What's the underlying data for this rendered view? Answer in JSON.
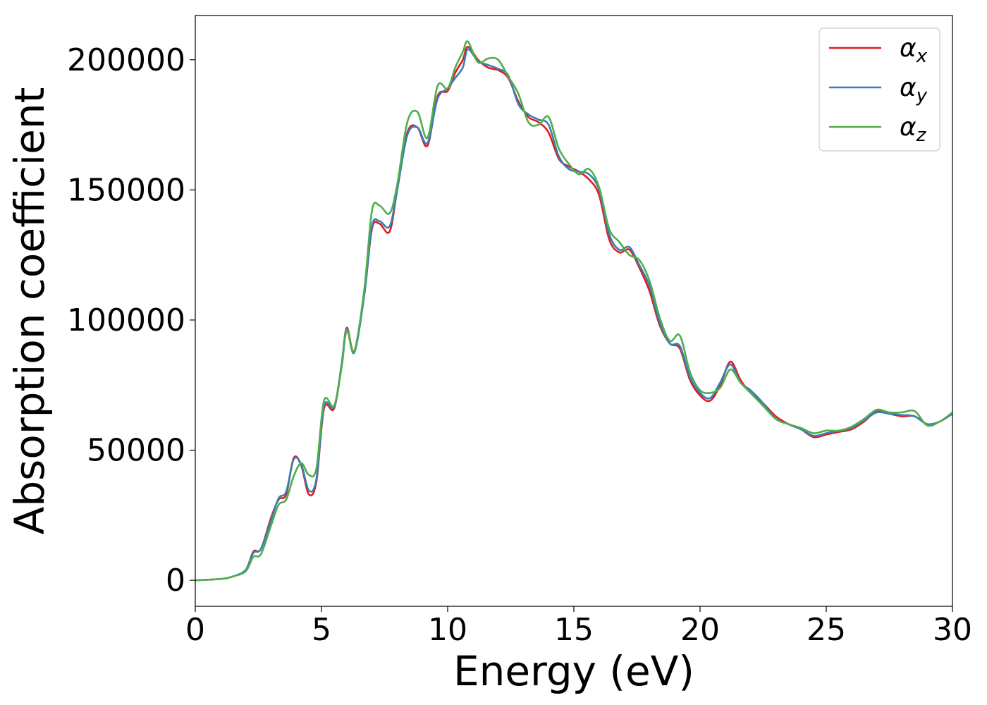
{
  "chart_data": {
    "type": "line",
    "xlabel": "Energy (eV)",
    "ylabel": "Absorption coefficient",
    "xlim": [
      0,
      30
    ],
    "ylim": [
      -10000,
      217000
    ],
    "xticks": [
      0,
      5,
      10,
      15,
      20,
      25,
      30
    ],
    "yticks": [
      0,
      50000,
      100000,
      150000,
      200000
    ],
    "grid": false,
    "legend_position": "top-right",
    "series": [
      {
        "name": "α",
        "subscript": "x",
        "color": "#e41a1c",
        "x": [
          0,
          1,
          1.5,
          2,
          2.3,
          2.6,
          3,
          3.3,
          3.6,
          3.9,
          4.2,
          4.5,
          4.8,
          5.1,
          5.5,
          5.8,
          6,
          6.3,
          6.7,
          7,
          7.3,
          7.7,
          8,
          8.4,
          8.8,
          9.2,
          9.6,
          10,
          10.3,
          10.6,
          10.8,
          11.2,
          11.6,
          12,
          12.4,
          12.8,
          13.2,
          13.6,
          14,
          14.4,
          14.8,
          15.2,
          15.6,
          16,
          16.4,
          16.8,
          17.2,
          17.6,
          18,
          18.4,
          18.8,
          19.2,
          19.6,
          20,
          20.4,
          20.8,
          21.2,
          21.6,
          22,
          22.5,
          23,
          23.5,
          24,
          24.5,
          25,
          25.5,
          26,
          26.5,
          27,
          27.5,
          28,
          28.5,
          29,
          29.5,
          30
        ],
        "y": [
          0,
          500,
          1500,
          4000,
          11000,
          12000,
          24000,
          31000,
          33000,
          47000,
          44000,
          33000,
          38000,
          66000,
          66000,
          83000,
          97000,
          88000,
          110000,
          135000,
          137000,
          134000,
          150000,
          172000,
          174000,
          167000,
          186000,
          188000,
          195000,
          200000,
          205000,
          200000,
          197000,
          196000,
          193000,
          184000,
          178000,
          176000,
          172000,
          162000,
          159000,
          157000,
          154000,
          148000,
          131000,
          126000,
          127000,
          120000,
          111000,
          98000,
          91000,
          89000,
          77000,
          71000,
          69000,
          75000,
          84000,
          77000,
          72000,
          68000,
          63000,
          60000,
          58000,
          55000,
          56000,
          57000,
          58000,
          61000,
          65000,
          64000,
          63000,
          63000,
          60000,
          61000,
          64000
        ]
      },
      {
        "name": "α",
        "subscript": "y",
        "color": "#377eb8",
        "x": [
          0,
          1,
          1.5,
          2,
          2.3,
          2.6,
          3,
          3.3,
          3.6,
          3.9,
          4.2,
          4.5,
          4.8,
          5.1,
          5.5,
          5.8,
          6,
          6.3,
          6.7,
          7,
          7.3,
          7.7,
          8,
          8.4,
          8.8,
          9.2,
          9.6,
          10,
          10.3,
          10.6,
          10.8,
          11.2,
          11.6,
          12,
          12.4,
          12.8,
          13.2,
          13.6,
          14,
          14.4,
          14.8,
          15.2,
          15.6,
          16,
          16.4,
          16.8,
          17.2,
          17.6,
          18,
          18.4,
          18.8,
          19.2,
          19.6,
          20,
          20.4,
          20.8,
          21.2,
          21.6,
          22,
          22.5,
          23,
          23.5,
          24,
          24.5,
          25,
          25.5,
          26,
          26.5,
          27,
          27.5,
          28,
          28.5,
          29,
          29.5,
          30
        ],
        "y": [
          0,
          500,
          1500,
          4000,
          10500,
          12000,
          23000,
          31500,
          34000,
          46500,
          44500,
          34500,
          39000,
          67000,
          66500,
          83000,
          96500,
          87500,
          110000,
          136000,
          138000,
          136000,
          150000,
          171000,
          174000,
          168000,
          185000,
          189000,
          193000,
          197000,
          204000,
          199500,
          198000,
          196500,
          194000,
          183000,
          179000,
          177000,
          175000,
          163000,
          158000,
          157000,
          156000,
          150000,
          133000,
          127000,
          128000,
          121000,
          113000,
          99000,
          91000,
          90000,
          78000,
          72000,
          70000,
          76000,
          83000,
          76000,
          73000,
          68000,
          62000,
          60000,
          58000,
          55500,
          56500,
          57500,
          58500,
          61500,
          64500,
          64000,
          63500,
          63000,
          60000,
          61000,
          64000
        ]
      },
      {
        "name": "α",
        "subscript": "z",
        "color": "#4daf4a",
        "x": [
          0,
          1,
          1.5,
          2,
          2.3,
          2.6,
          3,
          3.3,
          3.6,
          3.9,
          4.2,
          4.5,
          4.8,
          5.1,
          5.5,
          5.8,
          6,
          6.3,
          6.7,
          7,
          7.3,
          7.7,
          8,
          8.4,
          8.8,
          9.2,
          9.6,
          10,
          10.3,
          10.6,
          10.8,
          11.2,
          11.6,
          12,
          12.4,
          12.8,
          13.2,
          13.6,
          14,
          14.4,
          14.8,
          15.2,
          15.6,
          16,
          16.4,
          16.8,
          17.2,
          17.6,
          18,
          18.4,
          18.8,
          19.2,
          19.6,
          20,
          20.4,
          20.8,
          21.2,
          21.6,
          22,
          22.5,
          23,
          23.5,
          24,
          24.5,
          25,
          25.5,
          26,
          26.5,
          27,
          27.5,
          28,
          28.5,
          29,
          29.5,
          30
        ],
        "y": [
          0,
          500,
          1500,
          3500,
          9000,
          10000,
          21000,
          29000,
          31000,
          40000,
          45000,
          40500,
          43000,
          69000,
          67000,
          82000,
          96000,
          88000,
          112000,
          142000,
          144000,
          141000,
          152000,
          176000,
          180000,
          170000,
          190000,
          189000,
          197000,
          203000,
          207000,
          199000,
          200500,
          200000,
          193500,
          187000,
          176000,
          175000,
          178000,
          166000,
          160000,
          156000,
          158000,
          151000,
          135000,
          130000,
          125000,
          123000,
          115000,
          101000,
          92000,
          94000,
          80000,
          73000,
          72000,
          74000,
          81000,
          76000,
          72000,
          67000,
          62000,
          60000,
          58500,
          56500,
          57500,
          57500,
          59000,
          62000,
          65500,
          64500,
          64500,
          65000,
          59500,
          61000,
          64500
        ]
      }
    ]
  }
}
